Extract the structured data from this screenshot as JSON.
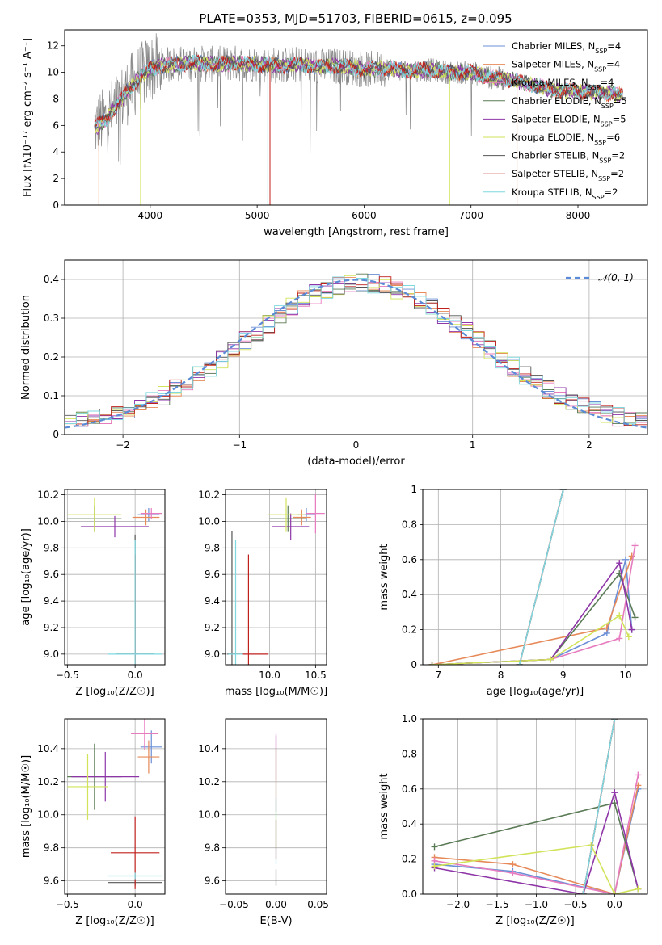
{
  "figure": {
    "title": "PLATE=0353, MJD=51703, FIBERID=0615, z=0.095"
  },
  "colors": {
    "chabrier_miles": "#6b8fd6",
    "salpeter_miles": "#e78a5a",
    "kroupa_miles": "#e77bbf",
    "chabrier_elodie": "#5a7a55",
    "salpeter_elodie": "#8e35a8",
    "kroupa_elodie": "#d2e35a",
    "chabrier_stelib": "#555555",
    "salpeter_stelib": "#c0201c",
    "kroupa_stelib": "#7fd8e0",
    "data": "#888888",
    "normal": "#5b8bd6",
    "grid": "#b0b0b0"
  },
  "chart_data": [
    {
      "id": "spectrum",
      "type": "line",
      "xlabel": "wavelength [Angstrom, rest frame]",
      "ylabel": "Flux [fλ10⁻¹⁷ erg cm⁻² s⁻¹ A⁻¹]",
      "xlim": [
        3200,
        8650
      ],
      "ylim": [
        0,
        13.2
      ],
      "xticks": [
        4000,
        5000,
        6000,
        7000,
        8000
      ],
      "yticks": [
        0,
        2,
        4,
        6,
        8,
        10,
        12
      ],
      "grid": false,
      "legend_position": "right",
      "legend": [
        {
          "label": "Chabrier MILES, N_SSP=4",
          "key": "chabrier_miles"
        },
        {
          "label": "Salpeter MILES, N_SSP=4",
          "key": "salpeter_miles"
        },
        {
          "label": "Kroupa MILES, N_SSP=4",
          "key": "kroupa_miles"
        },
        {
          "label": "Chabrier ELODIE, N_SSP=5",
          "key": "chabrier_elodie"
        },
        {
          "label": "Salpeter ELODIE, N_SSP=5",
          "key": "salpeter_elodie"
        },
        {
          "label": "Kroupa ELODIE, N_SSP=6",
          "key": "kroupa_elodie"
        },
        {
          "label": "Chabrier STELIB, N_SSP=2",
          "key": "chabrier_stelib"
        },
        {
          "label": "Salpeter STELIB, N_SSP=2",
          "key": "salpeter_stelib"
        },
        {
          "label": "Kroupa STELIB, N_SSP=2",
          "key": "kroupa_stelib"
        }
      ],
      "model_x": [
        3500,
        3600,
        3700,
        3800,
        3900,
        4000,
        4200,
        4400,
        4600,
        4800,
        5000,
        5200,
        5400,
        5600,
        5800,
        6000,
        6200,
        6400,
        6600,
        6800,
        7000,
        7200,
        7400,
        7600,
        7800,
        8000,
        8200,
        8400
      ],
      "model_y": [
        5.9,
        6.6,
        7.6,
        8.7,
        9.6,
        10.3,
        10.6,
        10.7,
        10.6,
        10.7,
        10.6,
        10.5,
        10.6,
        10.4,
        10.5,
        10.2,
        10.3,
        10.1,
        10.2,
        10.0,
        10.0,
        9.6,
        9.4,
        9.0,
        8.6,
        8.6,
        8.5,
        8.3
      ],
      "dropouts": [
        {
          "key": "kroupa_stelib",
          "x": 5100
        },
        {
          "key": "salpeter_stelib",
          "x": 5120
        },
        {
          "key": "kroupa_elodie",
          "x": 3910
        },
        {
          "key": "kroupa_elodie",
          "x": 6800
        },
        {
          "key": "salpeter_miles",
          "x": 7430
        },
        {
          "key": "salpeter_miles",
          "x": 3520
        }
      ]
    },
    {
      "id": "residuals",
      "type": "histogram",
      "xlabel": "(data-model)/error",
      "ylabel": "Normed distribution",
      "xlim": [
        -2.5,
        2.5
      ],
      "ylim": [
        0,
        0.45
      ],
      "xticks": [
        -2,
        -1,
        0,
        1,
        2
      ],
      "yticks": [
        0.0,
        0.1,
        0.2,
        0.3,
        0.4
      ],
      "grid": true,
      "legend_position": "top-right",
      "legend": [
        {
          "label": "𝒩(0, 1)",
          "key": "normal"
        }
      ],
      "bin_width": 0.1,
      "reference_curve": "normal(0,1)"
    },
    {
      "id": "age_vs_Z",
      "type": "scatter",
      "xlabel": "Z [log₁₀(Z/Z☉)]",
      "ylabel": "age  [log₁₀(age/yr)]",
      "xlim": [
        -0.52,
        0.22
      ],
      "ylim": [
        8.92,
        10.24
      ],
      "xticks": [
        -0.5,
        0.0
      ],
      "yticks": [
        9.0,
        9.2,
        9.4,
        9.6,
        9.8,
        10.0,
        10.2
      ],
      "grid": true,
      "points": [
        {
          "key": "chabrier_miles",
          "x": 0.1,
          "y": 10.05,
          "xerr": 0.08,
          "yerr": 0.05
        },
        {
          "key": "salpeter_miles",
          "x": 0.08,
          "y": 10.03,
          "xerr": 0.1,
          "yerr": 0.06
        },
        {
          "key": "kroupa_miles",
          "x": 0.12,
          "y": 10.06,
          "xerr": 0.08,
          "yerr": 0.04
        },
        {
          "key": "chabrier_elodie",
          "x": -0.3,
          "y": 10.02,
          "xerr": 0.2,
          "yerr": 0.1
        },
        {
          "key": "salpeter_elodie",
          "x": -0.15,
          "y": 9.96,
          "xerr": 0.25,
          "yerr": 0.08
        },
        {
          "key": "kroupa_elodie",
          "x": -0.3,
          "y": 10.05,
          "xerr": 0.2,
          "yerr": 0.13
        },
        {
          "key": "chabrier_stelib",
          "x": 0.0,
          "y": 9.0,
          "xerr": 0.14,
          "yerr": 0.9
        },
        {
          "key": "salpeter_stelib",
          "x": 0.0,
          "y": 9.0,
          "xerr": 0.01,
          "yerr": 0.75
        },
        {
          "key": "kroupa_stelib",
          "x": 0.0,
          "y": 9.0,
          "xerr": 0.2,
          "yerr": 0.86
        }
      ]
    },
    {
      "id": "age_vs_mass",
      "type": "scatter",
      "xlabel": "mass [log₁₀(M/M☉)]",
      "ylabel": "",
      "xlim": [
        9.52,
        10.62
      ],
      "ylim": [
        8.92,
        10.24
      ],
      "xticks": [
        10.0,
        10.5
      ],
      "yticks": [
        9.0,
        9.2,
        9.4,
        9.6,
        9.8,
        10.0,
        10.2
      ],
      "grid": true,
      "points": [
        {
          "key": "chabrier_miles",
          "x": 10.4,
          "y": 10.05,
          "xerr": 0.1,
          "yerr": 0.05
        },
        {
          "key": "salpeter_miles",
          "x": 10.35,
          "y": 10.03,
          "xerr": 0.1,
          "yerr": 0.06
        },
        {
          "key": "kroupa_miles",
          "x": 10.5,
          "y": 10.06,
          "xerr": 0.1,
          "yerr": 0.15
        },
        {
          "key": "chabrier_elodie",
          "x": 10.2,
          "y": 10.02,
          "xerr": 0.2,
          "yerr": 0.1
        },
        {
          "key": "salpeter_elodie",
          "x": 10.23,
          "y": 9.96,
          "xerr": 0.2,
          "yerr": 0.1
        },
        {
          "key": "kroupa_elodie",
          "x": 10.18,
          "y": 10.05,
          "xerr": 0.2,
          "yerr": 0.13
        },
        {
          "key": "chabrier_stelib",
          "x": 9.59,
          "y": 9.0,
          "xerr": 0.05,
          "yerr": 0.93
        },
        {
          "key": "salpeter_stelib",
          "x": 9.77,
          "y": 9.0,
          "xerr": 0.21,
          "yerr": 0.75
        },
        {
          "key": "kroupa_stelib",
          "x": 9.63,
          "y": 9.0,
          "xerr": 0.08,
          "yerr": 0.86
        }
      ]
    },
    {
      "id": "weight_vs_age",
      "type": "line",
      "xlabel": "age  [log₁₀(age/yr)]",
      "ylabel": "mass weight",
      "xlim": [
        6.75,
        10.35
      ],
      "ylim": [
        0,
        1
      ],
      "xticks": [
        7,
        8,
        9,
        10
      ],
      "yticks": [
        0.0,
        0.2,
        0.4,
        0.6,
        0.8,
        1.0
      ],
      "grid": true,
      "series": [
        {
          "key": "chabrier_miles",
          "x": [
            6.9,
            8.8,
            9.7,
            10.0,
            10.1
          ],
          "y": [
            0.0,
            0.03,
            0.18,
            0.6,
            0.2
          ]
        },
        {
          "key": "salpeter_miles",
          "x": [
            6.9,
            9.7,
            10.1
          ],
          "y": [
            0.0,
            0.21,
            0.62
          ]
        },
        {
          "key": "kroupa_miles",
          "x": [
            6.9,
            8.8,
            9.9,
            10.15
          ],
          "y": [
            0.0,
            0.03,
            0.15,
            0.68
          ]
        },
        {
          "key": "chabrier_elodie",
          "x": [
            6.9,
            8.8,
            9.9,
            10.15
          ],
          "y": [
            0.0,
            0.03,
            0.52,
            0.27
          ]
        },
        {
          "key": "salpeter_elodie",
          "x": [
            6.9,
            8.8,
            9.9,
            10.1
          ],
          "y": [
            0.0,
            0.03,
            0.58,
            0.2
          ]
        },
        {
          "key": "kroupa_elodie",
          "x": [
            6.9,
            8.8,
            9.9,
            10.05
          ],
          "y": [
            0.0,
            0.03,
            0.28,
            0.16
          ]
        },
        {
          "key": "chabrier_stelib",
          "x": [
            8.3,
            9.0
          ],
          "y": [
            0.0,
            1.0
          ]
        },
        {
          "key": "salpeter_stelib",
          "x": [
            8.3,
            9.0
          ],
          "y": [
            0.0,
            1.0
          ]
        },
        {
          "key": "kroupa_stelib",
          "x": [
            8.3,
            9.0
          ],
          "y": [
            0.0,
            1.0
          ]
        }
      ]
    },
    {
      "id": "mass_vs_Z",
      "type": "scatter",
      "xlabel": "Z [log₁₀(Z/Z☉)]",
      "ylabel": "mass [log₁₀(M/M☉)]",
      "xlim": [
        -0.52,
        0.22
      ],
      "ylim": [
        9.52,
        10.58
      ],
      "xticks": [
        -0.5,
        0.0
      ],
      "yticks": [
        9.6,
        9.8,
        10.0,
        10.2,
        10.4
      ],
      "grid": true,
      "points": [
        {
          "key": "chabrier_miles",
          "x": 0.12,
          "y": 10.41,
          "xerr": 0.08,
          "yerr": 0.1
        },
        {
          "key": "salpeter_miles",
          "x": 0.1,
          "y": 10.35,
          "xerr": 0.08,
          "yerr": 0.1
        },
        {
          "key": "kroupa_miles",
          "x": 0.07,
          "y": 10.49,
          "xerr": 0.1,
          "yerr": 0.1
        },
        {
          "key": "chabrier_elodie",
          "x": -0.3,
          "y": 10.23,
          "xerr": 0.2,
          "yerr": 0.2
        },
        {
          "key": "salpeter_elodie",
          "x": -0.22,
          "y": 10.23,
          "xerr": 0.25,
          "yerr": 0.15
        },
        {
          "key": "kroupa_elodie",
          "x": -0.35,
          "y": 10.17,
          "xerr": 0.15,
          "yerr": 0.2
        },
        {
          "key": "chabrier_stelib",
          "x": 0.0,
          "y": 9.59,
          "xerr": 0.2,
          "yerr": 0.02
        },
        {
          "key": "salpeter_stelib",
          "x": 0.0,
          "y": 9.77,
          "xerr": 0.18,
          "yerr": 0.22
        },
        {
          "key": "kroupa_stelib",
          "x": 0.0,
          "y": 9.63,
          "xerr": 0.2,
          "yerr": 0.02
        }
      ]
    },
    {
      "id": "mass_vs_ebv",
      "type": "scatter",
      "xlabel": "E(B-V)",
      "ylabel": "",
      "xlim": [
        -0.06,
        0.06
      ],
      "ylim": [
        9.52,
        10.58
      ],
      "xticks": [
        -0.05,
        0.0,
        0.05
      ],
      "yticks": [
        9.6,
        9.8,
        10.0,
        10.2,
        10.4
      ],
      "grid": true,
      "points": [
        {
          "key": "kroupa_miles",
          "x": 0.0,
          "y": 10.35,
          "xerr": 0.0,
          "yerr": 0.14
        },
        {
          "key": "salpeter_elodie",
          "x": 0.0,
          "y": 10.25,
          "xerr": 0.0,
          "yerr": 0.23
        },
        {
          "key": "kroupa_elodie",
          "x": 0.0,
          "y": 10.1,
          "xerr": 0.0,
          "yerr": 0.3
        },
        {
          "key": "salpeter_stelib",
          "x": 0.0,
          "y": 9.85,
          "xerr": 0.0,
          "yerr": 0.12
        },
        {
          "key": "chabrier_stelib",
          "x": 0.0,
          "y": 9.62,
          "xerr": 0.0,
          "yerr": 0.05
        },
        {
          "key": "kroupa_stelib",
          "x": 0.0,
          "y": 9.9,
          "xerr": 0.0,
          "yerr": 0.2
        }
      ]
    },
    {
      "id": "weight_vs_Z",
      "type": "line",
      "xlabel": "Z [log₁₀(Z/Z☉)]",
      "ylabel": "mass weight",
      "xlim": [
        -2.45,
        0.42
      ],
      "ylim": [
        0,
        1
      ],
      "xticks": [
        -2.0,
        -1.5,
        -1.0,
        -0.5,
        0.0
      ],
      "yticks": [
        0.0,
        0.2,
        0.4,
        0.6,
        0.8,
        1.0
      ],
      "grid": true,
      "series": [
        {
          "key": "chabrier_miles",
          "x": [
            -2.3,
            -1.3,
            0.0,
            0.3
          ],
          "y": [
            0.17,
            0.13,
            0.0,
            0.6
          ]
        },
        {
          "key": "salpeter_miles",
          "x": [
            -2.3,
            -1.3,
            0.0,
            0.3
          ],
          "y": [
            0.21,
            0.17,
            0.0,
            0.62
          ]
        },
        {
          "key": "kroupa_miles",
          "x": [
            -2.3,
            -1.3,
            0.0,
            0.3
          ],
          "y": [
            0.19,
            0.12,
            0.0,
            0.68
          ]
        },
        {
          "key": "chabrier_elodie",
          "x": [
            -2.3,
            0.0,
            0.3
          ],
          "y": [
            0.27,
            0.52,
            0.03
          ]
        },
        {
          "key": "salpeter_elodie",
          "x": [
            -2.3,
            -0.4,
            0.0,
            0.3
          ],
          "y": [
            0.15,
            0.0,
            0.58,
            0.03
          ]
        },
        {
          "key": "kroupa_elodie",
          "x": [
            -2.3,
            -0.3,
            0.0,
            0.3
          ],
          "y": [
            0.16,
            0.28,
            0.0,
            0.03
          ]
        },
        {
          "key": "chabrier_stelib",
          "x": [
            -0.4,
            0.0
          ],
          "y": [
            0.0,
            1.0
          ]
        },
        {
          "key": "salpeter_stelib",
          "x": [
            -0.4,
            0.0
          ],
          "y": [
            0.0,
            1.0
          ]
        },
        {
          "key": "kroupa_stelib",
          "x": [
            -0.4,
            0.0
          ],
          "y": [
            0.0,
            1.0
          ]
        }
      ]
    }
  ]
}
